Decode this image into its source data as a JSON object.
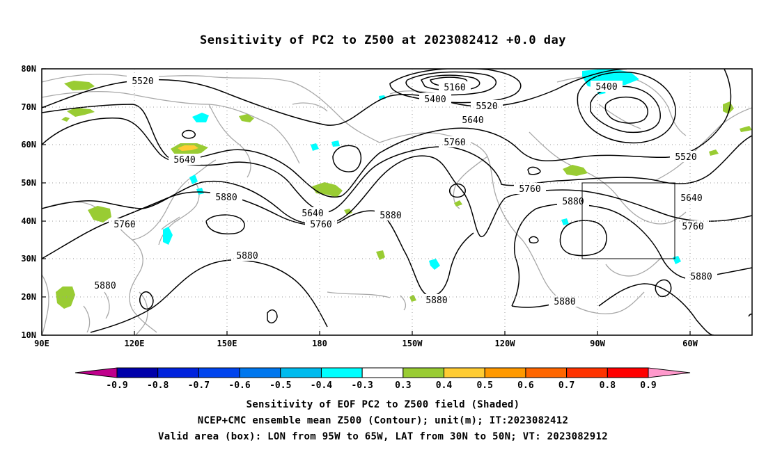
{
  "title": "Sensitivity of PC2 to Z500 at 2023082412 +0.0 day",
  "lat_labels": [
    "80N",
    "70N",
    "60N",
    "50N",
    "40N",
    "30N",
    "20N",
    "10N"
  ],
  "lon_labels": [
    "90E",
    "120E",
    "150E",
    "180",
    "150W",
    "120W",
    "90W",
    "60W"
  ],
  "contour_labels": [
    {
      "text": "5520"
    },
    {
      "text": "5160"
    },
    {
      "text": "5400"
    },
    {
      "text": "5520"
    },
    {
      "text": "5400"
    },
    {
      "text": "5640"
    },
    {
      "text": "5760"
    },
    {
      "text": "5520"
    },
    {
      "text": "5640"
    },
    {
      "text": "5880"
    },
    {
      "text": "5760"
    },
    {
      "text": "5640"
    },
    {
      "text": "5760"
    },
    {
      "text": "5880"
    },
    {
      "text": "5760"
    },
    {
      "text": "5880"
    },
    {
      "text": "5640"
    },
    {
      "text": "5760"
    },
    {
      "text": "5880"
    },
    {
      "text": "5880"
    },
    {
      "text": "5880"
    },
    {
      "text": "5880"
    },
    {
      "text": "5880"
    }
  ],
  "colorbar": {
    "labels": [
      "-0.9",
      "-0.8",
      "-0.7",
      "-0.6",
      "-0.5",
      "-0.4",
      "-0.3",
      "0.3",
      "0.4",
      "0.5",
      "0.6",
      "0.7",
      "0.8",
      "0.9"
    ],
    "colors": [
      "#c0008c",
      "#0000aa",
      "#0022dd",
      "#0044ee",
      "#0077ee",
      "#00bbee",
      "#00ffff",
      "#ffffff",
      "#99cc33",
      "#ffcc33",
      "#ff9900",
      "#ff6600",
      "#ff3300",
      "#ff0000",
      "#ff99cc"
    ]
  },
  "captions": [
    "Sensitivity of EOF PC2 to Z500 field (Shaded)",
    "NCEP+CMC ensemble mean Z500 (Contour); unit(m); IT:2023082412",
    "Valid area (box): LON from 95W to 65W, LAT from 30N to 50N; VT: 2023082912"
  ]
}
